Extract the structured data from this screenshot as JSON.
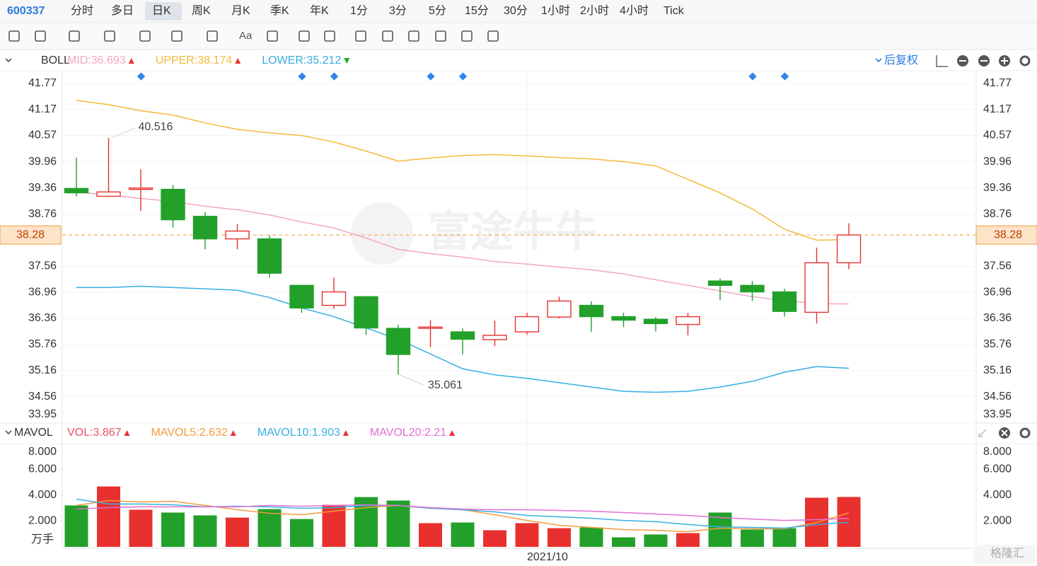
{
  "toolbar": {
    "symbol": "600337",
    "tabs": [
      "分时",
      "多日",
      "日K",
      "周K",
      "月K",
      "季K",
      "年K",
      "1分",
      "3分",
      "5分",
      "15分",
      "30分",
      "1小时",
      "2小时",
      "4小时",
      "Tick"
    ],
    "selected_index": 2,
    "text_tool": "Aa"
  },
  "adjust": "后复权",
  "watermark": "富途牛牛",
  "source_mark": "格隆汇",
  "chart_data": [
    {
      "type": "candlestick",
      "indicator": "BOLL",
      "open": [
        39.35,
        39.17,
        39.33,
        39.33,
        38.71,
        38.19,
        38.19,
        37.12,
        36.66,
        36.86,
        36.13,
        36.13,
        36.05,
        35.87,
        36.05,
        36.39,
        36.66,
        36.4,
        36.34,
        36.22,
        37.22,
        37.12,
        36.97,
        36.5,
        37.64
      ],
      "high": [
        40.06,
        40.516,
        39.79,
        39.43,
        38.81,
        38.53,
        38.27,
        37.12,
        37.3,
        36.86,
        36.21,
        36.32,
        36.13,
        36.31,
        36.49,
        36.86,
        36.75,
        36.49,
        36.39,
        36.49,
        37.28,
        37.22,
        37.04,
        37.99,
        38.55
      ],
      "low": [
        39.17,
        39.15,
        38.83,
        38.45,
        37.95,
        37.95,
        37.3,
        36.49,
        36.58,
        35.98,
        35.061,
        35.7,
        35.53,
        35.72,
        35.98,
        36.36,
        36.05,
        36.16,
        36.06,
        35.97,
        36.78,
        36.76,
        36.4,
        36.24,
        37.49
      ],
      "close": [
        39.25,
        39.27,
        39.36,
        38.63,
        38.19,
        38.37,
        37.4,
        36.6,
        36.97,
        36.14,
        35.53,
        36.16,
        35.88,
        35.97,
        36.4,
        36.76,
        36.4,
        36.32,
        36.24,
        36.4,
        37.12,
        36.97,
        36.52,
        37.64,
        38.28
      ],
      "up_color": "#e8312f",
      "down_color": "#22a02a",
      "series": [
        {
          "name": "MID",
          "color": "#f4a6c2",
          "values": [
            39.27,
            39.2,
            39.12,
            39.05,
            38.94,
            38.86,
            38.74,
            38.58,
            38.44,
            38.21,
            37.95,
            37.85,
            37.77,
            37.67,
            37.61,
            37.54,
            37.48,
            37.38,
            37.25,
            37.12,
            36.99,
            36.86,
            36.77,
            36.7,
            36.693
          ]
        },
        {
          "name": "UPPER",
          "color": "#f5b93a",
          "values": [
            41.38,
            41.28,
            41.14,
            41.04,
            40.86,
            40.71,
            40.63,
            40.57,
            40.42,
            40.21,
            39.98,
            40.05,
            40.11,
            40.13,
            40.1,
            40.06,
            40.03,
            39.97,
            39.87,
            39.56,
            39.25,
            38.88,
            38.41,
            38.16,
            38.174
          ]
        },
        {
          "name": "LOWER",
          "color": "#36aee2",
          "values": [
            37.07,
            37.07,
            37.1,
            37.07,
            37.04,
            37.01,
            36.84,
            36.6,
            36.4,
            36.14,
            35.88,
            35.54,
            35.2,
            35.06,
            34.98,
            34.88,
            34.78,
            34.68,
            34.66,
            34.68,
            34.78,
            34.91,
            35.12,
            35.25,
            35.212
          ]
        }
      ],
      "ylim": [
        33.95,
        42.06
      ],
      "yticks": [
        41.77,
        41.17,
        40.57,
        39.96,
        39.36,
        38.76,
        37.56,
        36.96,
        36.36,
        35.76,
        35.16,
        34.56,
        33.95
      ],
      "last_price": 38.28,
      "grid": true
    },
    {
      "type": "bar",
      "indicator": "MAVOL",
      "unit": "万手",
      "categories": [
        null,
        null,
        null,
        null,
        null,
        null,
        null,
        null,
        null,
        null,
        null,
        null,
        null,
        null,
        "2021/10",
        null,
        null,
        null,
        null,
        null,
        null,
        null,
        null,
        null,
        null
      ],
      "series": [
        {
          "name": "VOL",
          "color": "#e9506a",
          "values": [
            3.21,
            4.68,
            2.88,
            2.66,
            2.44,
            2.27,
            2.93,
            2.16,
            3.26,
            3.86,
            3.59,
            1.84,
            1.89,
            1.29,
            1.84,
            1.45,
            1.51,
            0.74,
            0.96,
            1.07,
            2.66,
            1.34,
            1.45,
            3.81,
            3.867
          ]
        },
        {
          "name": "MAVOL5",
          "color": "#f39a3e",
          "values": [
            3.21,
            3.59,
            3.48,
            3.53,
            3.21,
            2.88,
            2.6,
            2.49,
            2.77,
            3.04,
            3.21,
            2.99,
            2.88,
            2.49,
            2.05,
            1.67,
            1.51,
            1.34,
            1.29,
            1.18,
            1.45,
            1.4,
            1.4,
            1.89,
            2.632
          ]
        },
        {
          "name": "MAVOL10",
          "color": "#36b0e0",
          "values": [
            3.7,
            3.32,
            3.32,
            3.26,
            3.1,
            3.15,
            3.1,
            2.99,
            3.04,
            3.21,
            3.21,
            2.99,
            2.88,
            2.71,
            2.44,
            2.33,
            2.22,
            2.05,
            1.95,
            1.73,
            1.56,
            1.51,
            1.45,
            1.73,
            1.903
          ]
        },
        {
          "name": "MAVOL20",
          "color": "#e070d2",
          "values": [
            2.93,
            3.04,
            3.1,
            3.1,
            3.1,
            3.1,
            3.21,
            3.15,
            3.21,
            3.26,
            3.21,
            3.04,
            2.93,
            2.88,
            2.88,
            2.82,
            2.77,
            2.66,
            2.55,
            2.44,
            2.27,
            2.16,
            2.05,
            2.11,
            2.21
          ]
        }
      ],
      "ylim": [
        0,
        8
      ],
      "yticks": [
        {
          "value": 8,
          "label": "8.000"
        },
        {
          "value": 6,
          "label": "6.000"
        },
        {
          "value": 4,
          "label": "4.000"
        },
        {
          "value": 2,
          "label": "2.000"
        }
      ]
    }
  ]
}
